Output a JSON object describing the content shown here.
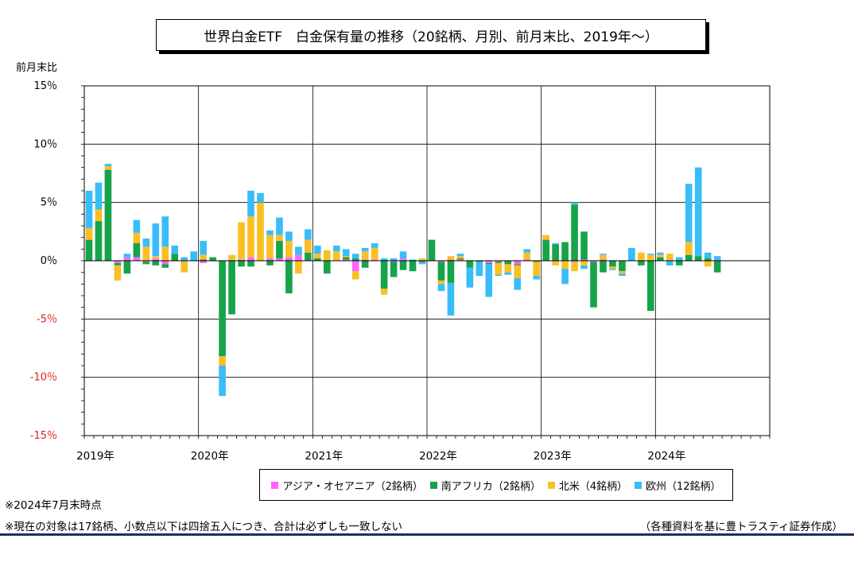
{
  "title": "世界白金ETF　白金保有量の推移（20銘柄、月別、前月末比、2019年～）",
  "ylabel": "前月末比",
  "notes": [
    "※2024年7月末時点",
    "※現在の対象は17銘柄、小数点以下は四捨五入につき、合計は必ずしも一致しない"
  ],
  "source": "（各種資料を基に豊トラスティ証券作成）",
  "chart_data": {
    "type": "bar",
    "stacked": true,
    "yticks": [
      15,
      10,
      5,
      0,
      -5,
      -10,
      -15
    ],
    "ytick_labels": [
      "15％",
      "10％",
      "5％",
      "0％",
      "-5％",
      "-10％",
      "-15％"
    ],
    "ylim": [
      -15,
      15
    ],
    "x_years": [
      "2019年",
      "2020年",
      "2021年",
      "2022年",
      "2023年",
      "2024年"
    ],
    "categories": [
      "2019-01",
      "2019-02",
      "2019-03",
      "2019-04",
      "2019-05",
      "2019-06",
      "2019-07",
      "2019-08",
      "2019-09",
      "2019-10",
      "2019-11",
      "2019-12",
      "2020-01",
      "2020-02",
      "2020-03",
      "2020-04",
      "2020-05",
      "2020-06",
      "2020-07",
      "2020-08",
      "2020-09",
      "2020-10",
      "2020-11",
      "2020-12",
      "2021-01",
      "2021-02",
      "2021-03",
      "2021-04",
      "2021-05",
      "2021-06",
      "2021-07",
      "2021-08",
      "2021-09",
      "2021-10",
      "2021-11",
      "2021-12",
      "2022-01",
      "2022-02",
      "2022-03",
      "2022-04",
      "2022-05",
      "2022-06",
      "2022-07",
      "2022-08",
      "2022-09",
      "2022-10",
      "2022-11",
      "2022-12",
      "2023-01",
      "2023-02",
      "2023-03",
      "2023-04",
      "2023-05",
      "2023-06",
      "2023-07",
      "2023-08",
      "2023-09",
      "2023-10",
      "2023-11",
      "2023-12",
      "2024-01",
      "2024-02",
      "2024-03",
      "2024-04",
      "2024-05",
      "2024-06",
      "2024-07"
    ],
    "grid": true,
    "legend_position": "bottom",
    "series": [
      {
        "name": "アジア・オセアニア（2銘柄）",
        "color": "#ff66ff",
        "values": [
          0,
          0,
          0,
          -0.2,
          0.3,
          0.3,
          -0.1,
          0.2,
          -0.3,
          0,
          0,
          0,
          -0.2,
          0,
          0,
          0,
          0.1,
          0.3,
          0,
          0.2,
          0.2,
          0.3,
          0.5,
          0,
          0,
          0,
          0,
          0.1,
          -0.9,
          0.1,
          0.1,
          0,
          -0.1,
          0.2,
          0,
          0,
          0,
          -0.1,
          0.1,
          0.1,
          0,
          0,
          -0.2,
          -0.1,
          0,
          -0.3,
          0.1,
          0,
          0,
          0,
          0,
          -0.1,
          0.1,
          -0.1,
          0.1,
          0,
          0,
          0,
          0,
          0,
          0,
          0,
          0,
          0,
          0,
          0,
          0.1
        ]
      },
      {
        "name": "南アフリカ（2銘柄）",
        "color": "#16a34a",
        "values": [
          1.8,
          3.4,
          7.8,
          -0.2,
          -1.1,
          1.2,
          -0.2,
          -0.4,
          -0.3,
          0.6,
          0,
          0,
          0.1,
          0.3,
          -8.2,
          -4.6,
          -0.5,
          -0.5,
          0,
          -0.4,
          1.5,
          -2.8,
          0,
          0.7,
          0.2,
          -1.1,
          0,
          0.2,
          0.2,
          -0.6,
          0,
          -2.4,
          -1.3,
          -0.8,
          -0.9,
          -0.1,
          1.8,
          -1.6,
          -1.9,
          0.1,
          -0.6,
          -0.1,
          -0.1,
          -0.1,
          -0.3,
          -0.1,
          0,
          -0.1,
          1.8,
          1.4,
          1.6,
          4.8,
          2.4,
          -3.9,
          -1,
          -0.5,
          -0.9,
          0,
          -0.4,
          -4.3,
          0.3,
          0,
          -0.4,
          0.5,
          0.4,
          0.2,
          -1.0
        ]
      },
      {
        "name": "北米（4銘柄）",
        "color": "#fbbf24",
        "values": [
          1.0,
          1.0,
          0.3,
          -1.3,
          0,
          0.9,
          1.2,
          0.2,
          1.2,
          0,
          -1.0,
          0,
          0.4,
          0,
          -0.8,
          0.5,
          3.2,
          3.5,
          5.0,
          2.0,
          0.5,
          1.4,
          -1.1,
          1.1,
          0.4,
          0.9,
          0.8,
          0.1,
          -0.7,
          0.7,
          1.0,
          -0.5,
          0,
          0,
          0,
          0.2,
          0,
          -0.3,
          0.3,
          0.2,
          0,
          0,
          0,
          -1.0,
          -0.7,
          -1.1,
          0.6,
          -1.2,
          0.4,
          -0.4,
          -0.7,
          -0.8,
          -0.4,
          0,
          0.4,
          -0.2,
          -0.2,
          0,
          0.7,
          0.5,
          0.2,
          0.6,
          0,
          1.1,
          0,
          -0.5,
          0
        ]
      },
      {
        "name": "欧州（12銘柄）",
        "color": "#38bdf8",
        "values": [
          3.2,
          2.3,
          0.2,
          0,
          0.3,
          1.1,
          0.7,
          2.8,
          2.6,
          0.7,
          0.3,
          0.8,
          1.2,
          0,
          -2.6,
          0,
          0,
          2.2,
          0.8,
          0.4,
          1.5,
          0.8,
          0.7,
          0.9,
          0.7,
          0,
          0.5,
          0.6,
          0.4,
          0.3,
          0.4,
          0.2,
          0.2,
          0.6,
          0.1,
          -0.2,
          0,
          -0.6,
          -2.8,
          0.2,
          -1.7,
          -1.2,
          -2.8,
          -0.1,
          -0.2,
          -1.0,
          0.3,
          -0.3,
          0,
          0.1,
          -1.3,
          0.2,
          -0.3,
          0,
          0.1,
          -0.1,
          -0.2,
          1.1,
          0,
          0.1,
          0.2,
          -0.4,
          0.3,
          5.0,
          7.6,
          0.5,
          0.3
        ]
      }
    ]
  }
}
